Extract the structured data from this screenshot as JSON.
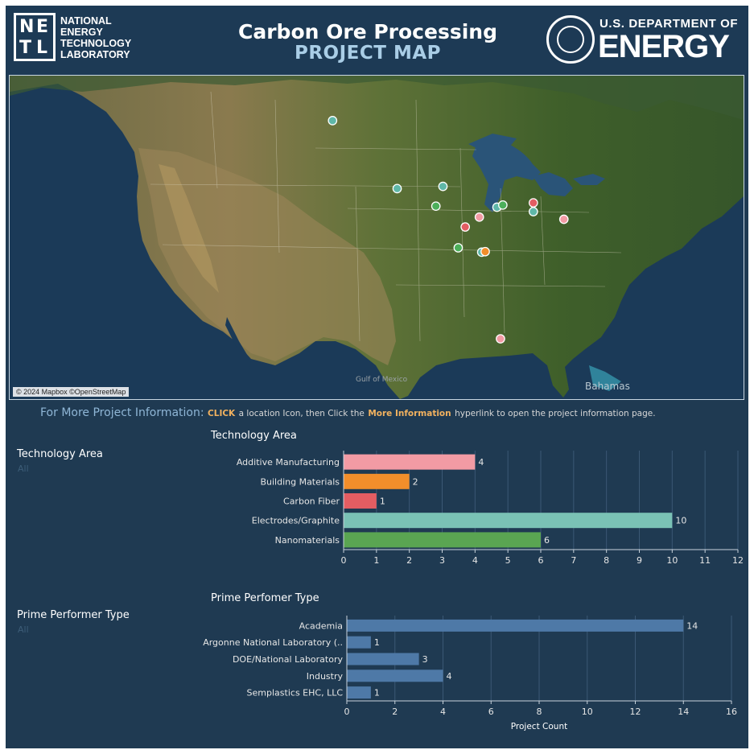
{
  "header": {
    "netl_logo_letters": [
      "N",
      "E",
      "T",
      "L"
    ],
    "netl_text": [
      "NATIONAL",
      "ENERGY",
      "TECHNOLOGY",
      "LABORATORY"
    ],
    "title": "Carbon Ore Processing",
    "subtitle": "PROJECT MAP",
    "doe_line1": "U.S. DEPARTMENT OF",
    "doe_line2": "ENERGY"
  },
  "map": {
    "credit": "© 2024 Mapbox ©OpenStreetMap",
    "label_bahamas": "Bahamas",
    "markers": [
      {
        "lon": -97.0,
        "lat": 47.9,
        "color": "#5fb7a8"
      },
      {
        "lon": -91.5,
        "lat": 41.7,
        "color": "#5fb7a8"
      },
      {
        "lon": -87.6,
        "lat": 41.9,
        "color": "#5fb7a8"
      },
      {
        "lon": -88.2,
        "lat": 40.1,
        "color": "#4caf5a"
      },
      {
        "lon": -83.0,
        "lat": 40.0,
        "color": "#5fb7a8"
      },
      {
        "lon": -82.5,
        "lat": 40.2,
        "color": "#4caf5a"
      },
      {
        "lon": -79.9,
        "lat": 40.4,
        "color": "#e35d62"
      },
      {
        "lon": -84.5,
        "lat": 39.1,
        "color": "#f29ba4"
      },
      {
        "lon": -79.9,
        "lat": 39.6,
        "color": "#5fb7a8"
      },
      {
        "lon": -77.3,
        "lat": 38.9,
        "color": "#f29ba4"
      },
      {
        "lon": -85.7,
        "lat": 38.2,
        "color": "#e35d62"
      },
      {
        "lon": -86.3,
        "lat": 36.3,
        "color": "#4caf5a"
      },
      {
        "lon": -84.3,
        "lat": 35.9,
        "color": "#5fb7a8"
      },
      {
        "lon": -84.0,
        "lat": 35.95,
        "color": "#f28e2b"
      },
      {
        "lon": -82.7,
        "lat": 28.0,
        "color": "#f29ba4"
      }
    ]
  },
  "info": {
    "lead": "For More Project Information:",
    "click": "CLICK",
    "mid": "a location Icon, then Click the",
    "more": "More Information",
    "tail": "hyperlink to open the project information page."
  },
  "filters": {
    "technology_label": "Technology Area",
    "technology_value": "All",
    "performer_label": "Prime Performer Type",
    "performer_value": "All"
  },
  "chart_data": [
    {
      "type": "bar",
      "orientation": "horizontal",
      "title": "Technology Area",
      "categories": [
        "Additive Manufacturing",
        "Building Materials",
        "Carbon Fiber",
        "Electrodes/Graphite",
        "Nanomaterials"
      ],
      "values": [
        4,
        2,
        1,
        10,
        6
      ],
      "colors": [
        "#f29ba4",
        "#f28e2b",
        "#e35d62",
        "#7ac2b5",
        "#5aa552"
      ],
      "xlim": [
        0,
        12
      ],
      "xticks": [
        0,
        1,
        2,
        3,
        4,
        5,
        6,
        7,
        8,
        9,
        10,
        11,
        12
      ],
      "xlabel": "",
      "grid": true
    },
    {
      "type": "bar",
      "orientation": "horizontal",
      "title": "Prime Perfomer Type",
      "categories": [
        "Academia",
        "Argonne National Laboratory (..",
        "DOE/National Laboratory",
        "Industry",
        "Semplastics EHC, LLC"
      ],
      "values": [
        14,
        1,
        3,
        4,
        1
      ],
      "colors": [
        "#4e79a7",
        "#4e79a7",
        "#4e79a7",
        "#4e79a7",
        "#4e79a7"
      ],
      "xlim": [
        0,
        16
      ],
      "xticks": [
        0,
        2,
        4,
        6,
        8,
        10,
        12,
        14,
        16
      ],
      "xlabel": "Project Count",
      "grid": true
    }
  ]
}
